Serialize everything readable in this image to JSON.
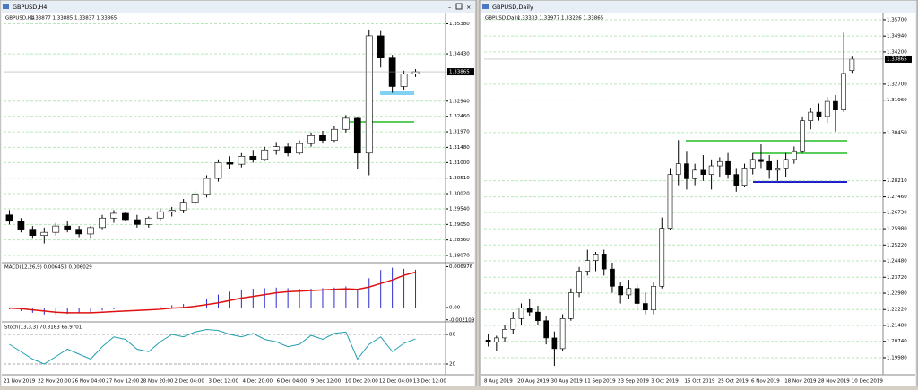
{
  "chart_data": [
    {
      "type": "candlestick",
      "title": "GBPUSD,H4",
      "quote": "1.33877 1.33885 1.33837 1.33865",
      "ylim": [
        1.279,
        1.3545
      ],
      "yticks": [
        {
          "value": 1.3538,
          "label": "1.35380"
        },
        {
          "value": 1.3443,
          "label": "1.34430"
        },
        {
          "value": 1.3294,
          "label": "1.32940"
        },
        {
          "value": 1.3246,
          "label": "1.32460"
        },
        {
          "value": 1.3197,
          "label": "1.31970"
        },
        {
          "value": 1.3148,
          "label": "1.31480"
        },
        {
          "value": 1.31,
          "label": "1.31000"
        },
        {
          "value": 1.3051,
          "label": "1.30510"
        },
        {
          "value": 1.3002,
          "label": "1.30020"
        },
        {
          "value": 1.2954,
          "label": "1.29540"
        },
        {
          "value": 1.2905,
          "label": "1.29050"
        },
        {
          "value": 1.2856,
          "label": "1.28560"
        },
        {
          "value": 1.2807,
          "label": "1.28070"
        }
      ],
      "current_price": 1.33865,
      "x_labels": [
        "21 Nov 2019",
        "22 Nov 20:00",
        "26 Nov 04:00",
        "27 Nov 12:00",
        "28 Nov 20:00",
        "2 Dec 04:00",
        "3 Dec 12:00",
        "4 Dec 20:00",
        "6 Dec 04:00",
        "9 Dec 12:00",
        "10 Dec 20:00",
        "12 Dec 04:00",
        "13 Dec 12:00"
      ],
      "ohlc": [
        [
          1.2935,
          1.295,
          1.2905,
          1.2915
        ],
        [
          1.2915,
          1.2925,
          1.288,
          1.289
        ],
        [
          1.289,
          1.29,
          1.286,
          1.287
        ],
        [
          1.287,
          1.2895,
          1.2845,
          1.288
        ],
        [
          1.288,
          1.291,
          1.287,
          1.29
        ],
        [
          1.29,
          1.2915,
          1.288,
          1.289
        ],
        [
          1.289,
          1.29,
          1.2865,
          1.2875
        ],
        [
          1.2875,
          1.29,
          1.286,
          1.2895
        ],
        [
          1.2895,
          1.2935,
          1.289,
          1.2925
        ],
        [
          1.2925,
          1.295,
          1.291,
          1.294
        ],
        [
          1.294,
          1.2945,
          1.2915,
          1.292
        ],
        [
          1.292,
          1.2935,
          1.2895,
          1.2905
        ],
        [
          1.2905,
          1.293,
          1.2895,
          1.2925
        ],
        [
          1.2925,
          1.2955,
          1.2915,
          1.2945
        ],
        [
          1.2945,
          1.296,
          1.293,
          1.295
        ],
        [
          1.295,
          1.2985,
          1.294,
          1.2975
        ],
        [
          1.2975,
          1.301,
          1.2965,
          1.3
        ],
        [
          1.3,
          1.306,
          1.299,
          1.305
        ],
        [
          1.305,
          1.311,
          1.304,
          1.31
        ],
        [
          1.31,
          1.312,
          1.308,
          1.3095
        ],
        [
          1.3095,
          1.313,
          1.3085,
          1.312
        ],
        [
          1.312,
          1.314,
          1.31,
          1.311
        ],
        [
          1.311,
          1.315,
          1.3105,
          1.314
        ],
        [
          1.314,
          1.3165,
          1.3125,
          1.315
        ],
        [
          1.315,
          1.316,
          1.312,
          1.313
        ],
        [
          1.313,
          1.317,
          1.3125,
          1.316
        ],
        [
          1.316,
          1.3195,
          1.315,
          1.3185
        ],
        [
          1.3185,
          1.32,
          1.316,
          1.317
        ],
        [
          1.317,
          1.3215,
          1.3165,
          1.3205
        ],
        [
          1.3205,
          1.325,
          1.3195,
          1.324
        ],
        [
          1.324,
          1.3245,
          1.308,
          1.313
        ],
        [
          1.313,
          1.352,
          1.306,
          1.35
        ],
        [
          1.35,
          1.3515,
          1.34,
          1.343
        ],
        [
          1.343,
          1.344,
          1.332,
          1.334
        ],
        [
          1.334,
          1.339,
          1.333,
          1.338
        ],
        [
          1.338,
          1.3395,
          1.337,
          1.33865
        ]
      ],
      "macd": {
        "label": "MACD(12,26,9) 0.006453 0.006029",
        "ylim": [
          -0.0023,
          0.0075
        ],
        "yticks": [
          0.006976,
          {
            "value": 0,
            "label": "0.00"
          },
          -0.002109
        ],
        "histogram": [
          -0.0003,
          -0.0006,
          -0.0009,
          -0.0012,
          -0.0012,
          -0.0011,
          -0.001,
          -0.0008,
          -0.0005,
          -0.0003,
          -0.0002,
          -0.0001,
          0,
          0.0002,
          0.0004,
          0.0006,
          0.001,
          0.0015,
          0.0022,
          0.0027,
          0.003,
          0.0032,
          0.0033,
          0.0034,
          0.0033,
          0.0032,
          0.0032,
          0.0033,
          0.0034,
          0.0036,
          0.003,
          0.005,
          0.0064,
          0.0068,
          0.0066,
          0.006453
        ],
        "signal": [
          -0.0001,
          -0.0002,
          -0.0004,
          -0.0006,
          -0.0008,
          -0.0009,
          -0.0009,
          -0.0009,
          -0.0008,
          -0.0007,
          -0.0006,
          -0.0005,
          -0.0004,
          -0.0003,
          -0.0001,
          0,
          0.0002,
          0.0005,
          0.0008,
          0.0012,
          0.0016,
          0.0019,
          0.0022,
          0.0025,
          0.0027,
          0.0028,
          0.0029,
          0.003,
          0.0031,
          0.0032,
          0.0031,
          0.0035,
          0.0041,
          0.0047,
          0.0055,
          0.006029
        ]
      },
      "stoch": {
        "label": "Stoch(13,3,3) 70.8163 66.9701",
        "ylim": [
          0,
          100
        ],
        "yticks": [
          80,
          20
        ],
        "values": [
          60,
          45,
          30,
          20,
          35,
          50,
          40,
          30,
          55,
          75,
          70,
          50,
          45,
          65,
          80,
          75,
          85,
          90,
          88,
          80,
          75,
          82,
          70,
          65,
          55,
          60,
          78,
          70,
          82,
          85,
          30,
          60,
          75,
          45,
          62,
          70.8163
        ]
      }
    },
    {
      "type": "candlestick",
      "title": "GBPUSD,Daily",
      "quote": "1.33333 1.33977 1.33226 1.33865",
      "ylim": [
        1.1927,
        1.3599
      ],
      "yticks": [
        {
          "value": 1.357,
          "label": "1.35700"
        },
        {
          "value": 1.3494,
          "label": "1.34940"
        },
        {
          "value": 1.342,
          "label": "1.34200"
        },
        {
          "value": 1.327,
          "label": "1.32700"
        },
        {
          "value": 1.3196,
          "label": "1.31960"
        },
        {
          "value": 1.3045,
          "label": "1.30450"
        },
        {
          "value": 1.2821,
          "label": "1.28210"
        },
        {
          "value": 1.2746,
          "label": "1.27460"
        },
        {
          "value": 1.2673,
          "label": "1.26730"
        },
        {
          "value": 1.2598,
          "label": "1.25980"
        },
        {
          "value": 1.2522,
          "label": "1.25220"
        },
        {
          "value": 1.2448,
          "label": "1.24480"
        },
        {
          "value": 1.2372,
          "label": "1.23720"
        },
        {
          "value": 1.2298,
          "label": "1.22980"
        },
        {
          "value": 1.2222,
          "label": "1.22220"
        },
        {
          "value": 1.2148,
          "label": "1.21480"
        },
        {
          "value": 1.2074,
          "label": "1.20740"
        },
        {
          "value": 1.1998,
          "label": "1.19980"
        }
      ],
      "current_price": 1.33865,
      "x_labels": [
        "8 Aug 2019",
        "20 Aug 2019",
        "30 Aug 2019",
        "11 Sep 2019",
        "23 Sep 2019",
        "3 Oct 2019",
        "15 Oct 2019",
        "25 Oct 2019",
        "6 Nov 2019",
        "18 Nov 2019",
        "28 Nov 2019",
        "10 Dec 2019"
      ],
      "ohlc": [
        [
          1.208,
          1.211,
          1.205,
          1.207
        ],
        [
          1.207,
          1.21,
          1.203,
          1.209
        ],
        [
          1.209,
          1.215,
          1.207,
          1.213
        ],
        [
          1.213,
          1.221,
          1.211,
          1.218
        ],
        [
          1.218,
          1.225,
          1.215,
          1.223
        ],
        [
          1.223,
          1.227,
          1.219,
          1.221
        ],
        [
          1.221,
          1.224,
          1.215,
          1.217
        ],
        [
          1.217,
          1.219,
          1.206,
          1.209
        ],
        [
          1.209,
          1.212,
          1.196,
          1.204
        ],
        [
          1.204,
          1.22,
          1.203,
          1.218
        ],
        [
          1.218,
          1.232,
          1.217,
          1.23
        ],
        [
          1.23,
          1.242,
          1.228,
          1.24
        ],
        [
          1.24,
          1.25,
          1.238,
          1.245
        ],
        [
          1.245,
          1.249,
          1.24,
          1.248
        ],
        [
          1.248,
          1.25,
          1.238,
          1.241
        ],
        [
          1.241,
          1.244,
          1.23,
          1.233
        ],
        [
          1.233,
          1.235,
          1.225,
          1.229
        ],
        [
          1.229,
          1.236,
          1.227,
          1.232
        ],
        [
          1.232,
          1.234,
          1.222,
          1.225
        ],
        [
          1.225,
          1.23,
          1.22,
          1.222
        ],
        [
          1.222,
          1.235,
          1.22,
          1.233
        ],
        [
          1.233,
          1.265,
          1.232,
          1.26
        ],
        [
          1.26,
          1.288,
          1.259,
          1.285
        ],
        [
          1.285,
          1.301,
          1.28,
          1.29
        ],
        [
          1.29,
          1.296,
          1.278,
          1.283
        ],
        [
          1.283,
          1.29,
          1.28,
          1.287
        ],
        [
          1.287,
          1.294,
          1.282,
          1.285
        ],
        [
          1.285,
          1.292,
          1.278,
          1.289
        ],
        [
          1.289,
          1.293,
          1.284,
          1.291
        ],
        [
          1.291,
          1.295,
          1.283,
          1.285
        ],
        [
          1.285,
          1.288,
          1.277,
          1.28
        ],
        [
          1.28,
          1.29,
          1.279,
          1.288
        ],
        [
          1.288,
          1.295,
          1.285,
          1.292
        ],
        [
          1.292,
          1.299,
          1.288,
          1.291
        ],
        [
          1.291,
          1.294,
          1.283,
          1.287
        ],
        [
          1.287,
          1.292,
          1.282,
          1.288
        ],
        [
          1.288,
          1.295,
          1.284,
          1.292
        ],
        [
          1.292,
          1.298,
          1.29,
          1.296
        ],
        [
          1.296,
          1.312,
          1.295,
          1.31
        ],
        [
          1.31,
          1.316,
          1.306,
          1.314
        ],
        [
          1.314,
          1.318,
          1.31,
          1.312
        ],
        [
          1.312,
          1.321,
          1.309,
          1.319
        ],
        [
          1.319,
          1.322,
          1.305,
          1.315
        ],
        [
          1.315,
          1.351,
          1.314,
          1.332
        ],
        [
          1.33333,
          1.33977,
          1.33226,
          1.33865
        ]
      ]
    }
  ]
}
